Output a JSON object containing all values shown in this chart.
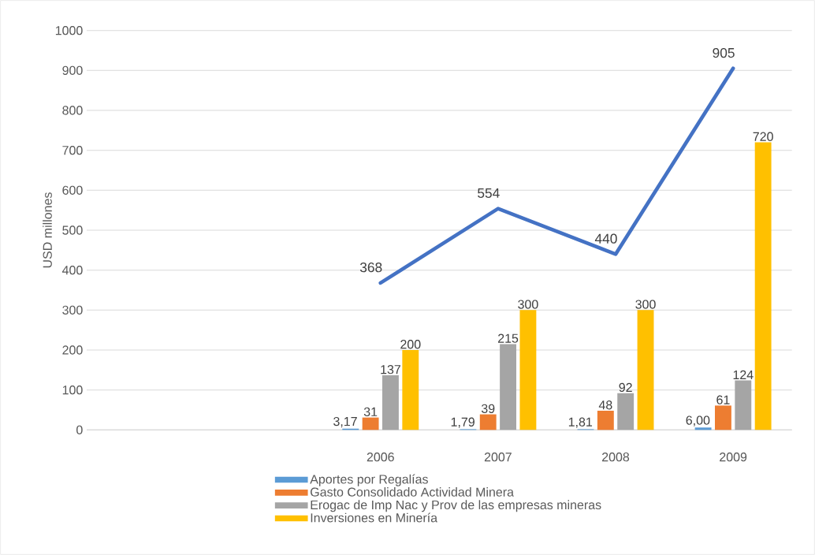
{
  "chart_data": {
    "type": "bar",
    "ylabel": "USD millones",
    "categories": [
      null,
      null,
      "2006",
      "2007",
      "2008",
      "2009"
    ],
    "series": [
      {
        "name": "Aportes por Regalías",
        "color": "#5b9bd5",
        "values": [
          null,
          null,
          3.17,
          1.79,
          1.81,
          6.0
        ],
        "value_labels": [
          null,
          null,
          "3,17",
          "1,79",
          "1,81",
          "6,00"
        ]
      },
      {
        "name": "Gasto Consolidado Actividad Minera",
        "color": "#ed7d31",
        "values": [
          null,
          null,
          31,
          39,
          48,
          61
        ],
        "value_labels": [
          null,
          null,
          "31",
          "39",
          "48",
          "61"
        ]
      },
      {
        "name": "Erogac de Imp Nac y Prov de las empresas mineras",
        "color": "#a5a5a5",
        "values": [
          null,
          null,
          137,
          215,
          92,
          124
        ],
        "value_labels": [
          null,
          null,
          "137",
          "215",
          "92",
          "124"
        ]
      },
      {
        "name": "Inversiones en Minería",
        "color": "#ffc000",
        "values": [
          null,
          null,
          200,
          300,
          300,
          720
        ],
        "value_labels": [
          null,
          null,
          "200",
          "300",
          "300",
          "720"
        ]
      },
      {
        "type": "line",
        "color": "#4472c4",
        "values": [
          null,
          null,
          368,
          554,
          440,
          905
        ],
        "value_labels": [
          null,
          null,
          "368",
          "554",
          "440",
          "905"
        ]
      }
    ],
    "ylim": [
      0,
      1000
    ],
    "yticks": [
      0,
      100,
      200,
      300,
      400,
      500,
      600,
      700,
      800,
      900,
      1000
    ],
    "grid": "y",
    "legend": "bottom",
    "marker": "none",
    "line_style": "solid"
  }
}
